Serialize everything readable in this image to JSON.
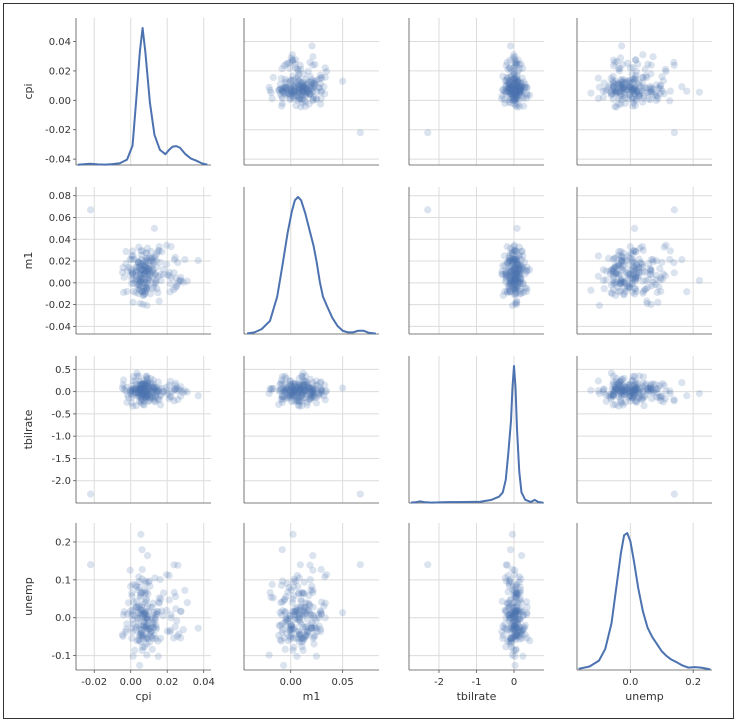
{
  "chart_data": {
    "type": "scatter_matrix",
    "variables": [
      "cpi",
      "m1",
      "tbilrate",
      "unemp"
    ],
    "axis_labels": {
      "x": [
        "cpi",
        "m1",
        "tbilrate",
        "unemp"
      ],
      "y": [
        "cpi",
        "m1",
        "tbilrate",
        "unemp"
      ]
    },
    "diagonal": "kde",
    "offdiagonal": "scatter",
    "point_color": "#4c72b0",
    "point_alpha": 0.2,
    "line_color": "#4c72b0",
    "grid": true,
    "x_ranges": {
      "cpi": [
        -0.03,
        0.044
      ],
      "m1": [
        -0.045,
        0.085
      ],
      "tbilrate": [
        -2.8,
        0.8
      ],
      "unemp": [
        -0.17,
        0.26
      ]
    },
    "y_ranges": {
      "cpi": [
        -0.044,
        0.056
      ],
      "m1": [
        -0.047,
        0.088
      ],
      "tbilrate": [
        -2.5,
        0.8
      ],
      "unemp": [
        -0.138,
        0.25
      ]
    },
    "x_ticks": {
      "cpi": {
        "values": [
          -0.02,
          0.0,
          0.02,
          0.04
        ],
        "labels": [
          "-0.02",
          "0.00",
          "0.02",
          "0.04"
        ]
      },
      "m1": {
        "values": [
          0.0,
          0.05
        ],
        "labels": [
          "0.00",
          "0.05"
        ]
      },
      "tbilrate": {
        "values": [
          -2,
          -1,
          0
        ],
        "labels": [
          "-2",
          "-1",
          "0"
        ]
      },
      "unemp": {
        "values": [
          0.0,
          0.2
        ],
        "labels": [
          "0.0",
          "0.2"
        ]
      }
    },
    "x_grid": {
      "cpi": [
        -0.02,
        0.0,
        0.02,
        0.04
      ],
      "m1": [
        0.0,
        0.05
      ],
      "tbilrate": [
        -2,
        -1,
        0
      ],
      "unemp": [
        0.0,
        0.2
      ]
    },
    "y_ticks": {
      "cpi": {
        "values": [
          0.04,
          0.02,
          0.0,
          -0.02,
          -0.04
        ],
        "labels": [
          "0.04",
          "0.02",
          "0.00",
          "-0.02",
          "-0.04"
        ]
      },
      "m1": {
        "values": [
          0.08,
          0.06,
          0.04,
          0.02,
          0.0,
          -0.02,
          -0.04
        ],
        "labels": [
          "0.08",
          "0.06",
          "0.04",
          "0.02",
          "0.00",
          "-0.02",
          "-0.04"
        ]
      },
      "tbilrate": {
        "values": [
          0.5,
          0.0,
          -0.5,
          -1.0,
          -1.5,
          -2.0
        ],
        "labels": [
          "0.5",
          "0.0",
          "-0.5",
          "-1.0",
          "-1.5",
          "-2.0"
        ]
      },
      "unemp": {
        "values": [
          0.2,
          0.1,
          0.0,
          -0.1
        ],
        "labels": [
          "0.2",
          "0.1",
          "0.0",
          "-0.1"
        ]
      }
    },
    "kde_curves": {
      "cpi": [
        [
          -0.029,
          0.2
        ],
        [
          -0.025,
          0.8
        ],
        [
          -0.022,
          1.2
        ],
        [
          -0.018,
          0.6
        ],
        [
          -0.014,
          0.3
        ],
        [
          -0.01,
          0.8
        ],
        [
          -0.006,
          1.6
        ],
        [
          -0.002,
          5
        ],
        [
          0.001,
          18
        ],
        [
          0.003,
          60
        ],
        [
          0.005,
          105
        ],
        [
          0.0065,
          127
        ],
        [
          0.008,
          105
        ],
        [
          0.0105,
          58
        ],
        [
          0.013,
          28
        ],
        [
          0.016,
          14
        ],
        [
          0.019,
          10
        ],
        [
          0.021,
          14
        ],
        [
          0.023,
          17
        ],
        [
          0.025,
          17.5
        ],
        [
          0.027,
          16
        ],
        [
          0.03,
          10
        ],
        [
          0.033,
          6
        ],
        [
          0.036,
          4
        ],
        [
          0.039,
          1.5
        ],
        [
          0.042,
          0.3
        ]
      ],
      "m1": [
        [
          -0.042,
          0.3
        ],
        [
          -0.035,
          1
        ],
        [
          -0.028,
          3
        ],
        [
          -0.02,
          8
        ],
        [
          -0.013,
          23
        ],
        [
          -0.008,
          42
        ],
        [
          -0.003,
          62
        ],
        [
          0.001,
          75
        ],
        [
          0.004,
          82
        ],
        [
          0.007,
          84
        ],
        [
          0.01,
          82
        ],
        [
          0.014,
          74
        ],
        [
          0.018,
          64
        ],
        [
          0.022,
          54
        ],
        [
          0.025,
          44
        ],
        [
          0.028,
          32
        ],
        [
          0.031,
          23
        ],
        [
          0.035,
          17
        ],
        [
          0.04,
          10
        ],
        [
          0.045,
          5
        ],
        [
          0.05,
          2
        ],
        [
          0.055,
          1
        ],
        [
          0.06,
          1
        ],
        [
          0.065,
          2
        ],
        [
          0.07,
          2
        ],
        [
          0.075,
          0.8
        ],
        [
          0.082,
          0.2
        ]
      ],
      "tbilrate": [
        [
          -2.75,
          0.3
        ],
        [
          -2.6,
          0.8
        ],
        [
          -2.5,
          1.6
        ],
        [
          -2.4,
          0.8
        ],
        [
          -2.2,
          0.4
        ],
        [
          -1.8,
          0.8
        ],
        [
          -1.3,
          1
        ],
        [
          -0.9,
          1.2
        ],
        [
          -0.6,
          3
        ],
        [
          -0.4,
          6
        ],
        [
          -0.3,
          10
        ],
        [
          -0.22,
          22
        ],
        [
          -0.15,
          48
        ],
        [
          -0.08,
          78
        ],
        [
          -0.04,
          110
        ],
        [
          0.0,
          130
        ],
        [
          0.04,
          110
        ],
        [
          0.08,
          70
        ],
        [
          0.14,
          30
        ],
        [
          0.2,
          10
        ],
        [
          0.3,
          3
        ],
        [
          0.45,
          1
        ],
        [
          0.55,
          3
        ],
        [
          0.65,
          1
        ],
        [
          0.78,
          0.3
        ]
      ],
      "unemp": [
        [
          -0.165,
          1
        ],
        [
          -0.13,
          3
        ],
        [
          -0.1,
          8
        ],
        [
          -0.08,
          18
        ],
        [
          -0.06,
          40
        ],
        [
          -0.045,
          70
        ],
        [
          -0.03,
          100
        ],
        [
          -0.02,
          115
        ],
        [
          -0.01,
          117
        ],
        [
          0.0,
          110
        ],
        [
          0.012,
          92
        ],
        [
          0.025,
          70
        ],
        [
          0.04,
          50
        ],
        [
          0.055,
          36
        ],
        [
          0.07,
          28
        ],
        [
          0.085,
          22
        ],
        [
          0.1,
          16
        ],
        [
          0.115,
          12
        ],
        [
          0.13,
          9
        ],
        [
          0.145,
          7
        ],
        [
          0.165,
          4
        ],
        [
          0.185,
          2
        ],
        [
          0.205,
          2.5
        ],
        [
          0.225,
          2
        ],
        [
          0.255,
          0.5
        ]
      ]
    }
  }
}
